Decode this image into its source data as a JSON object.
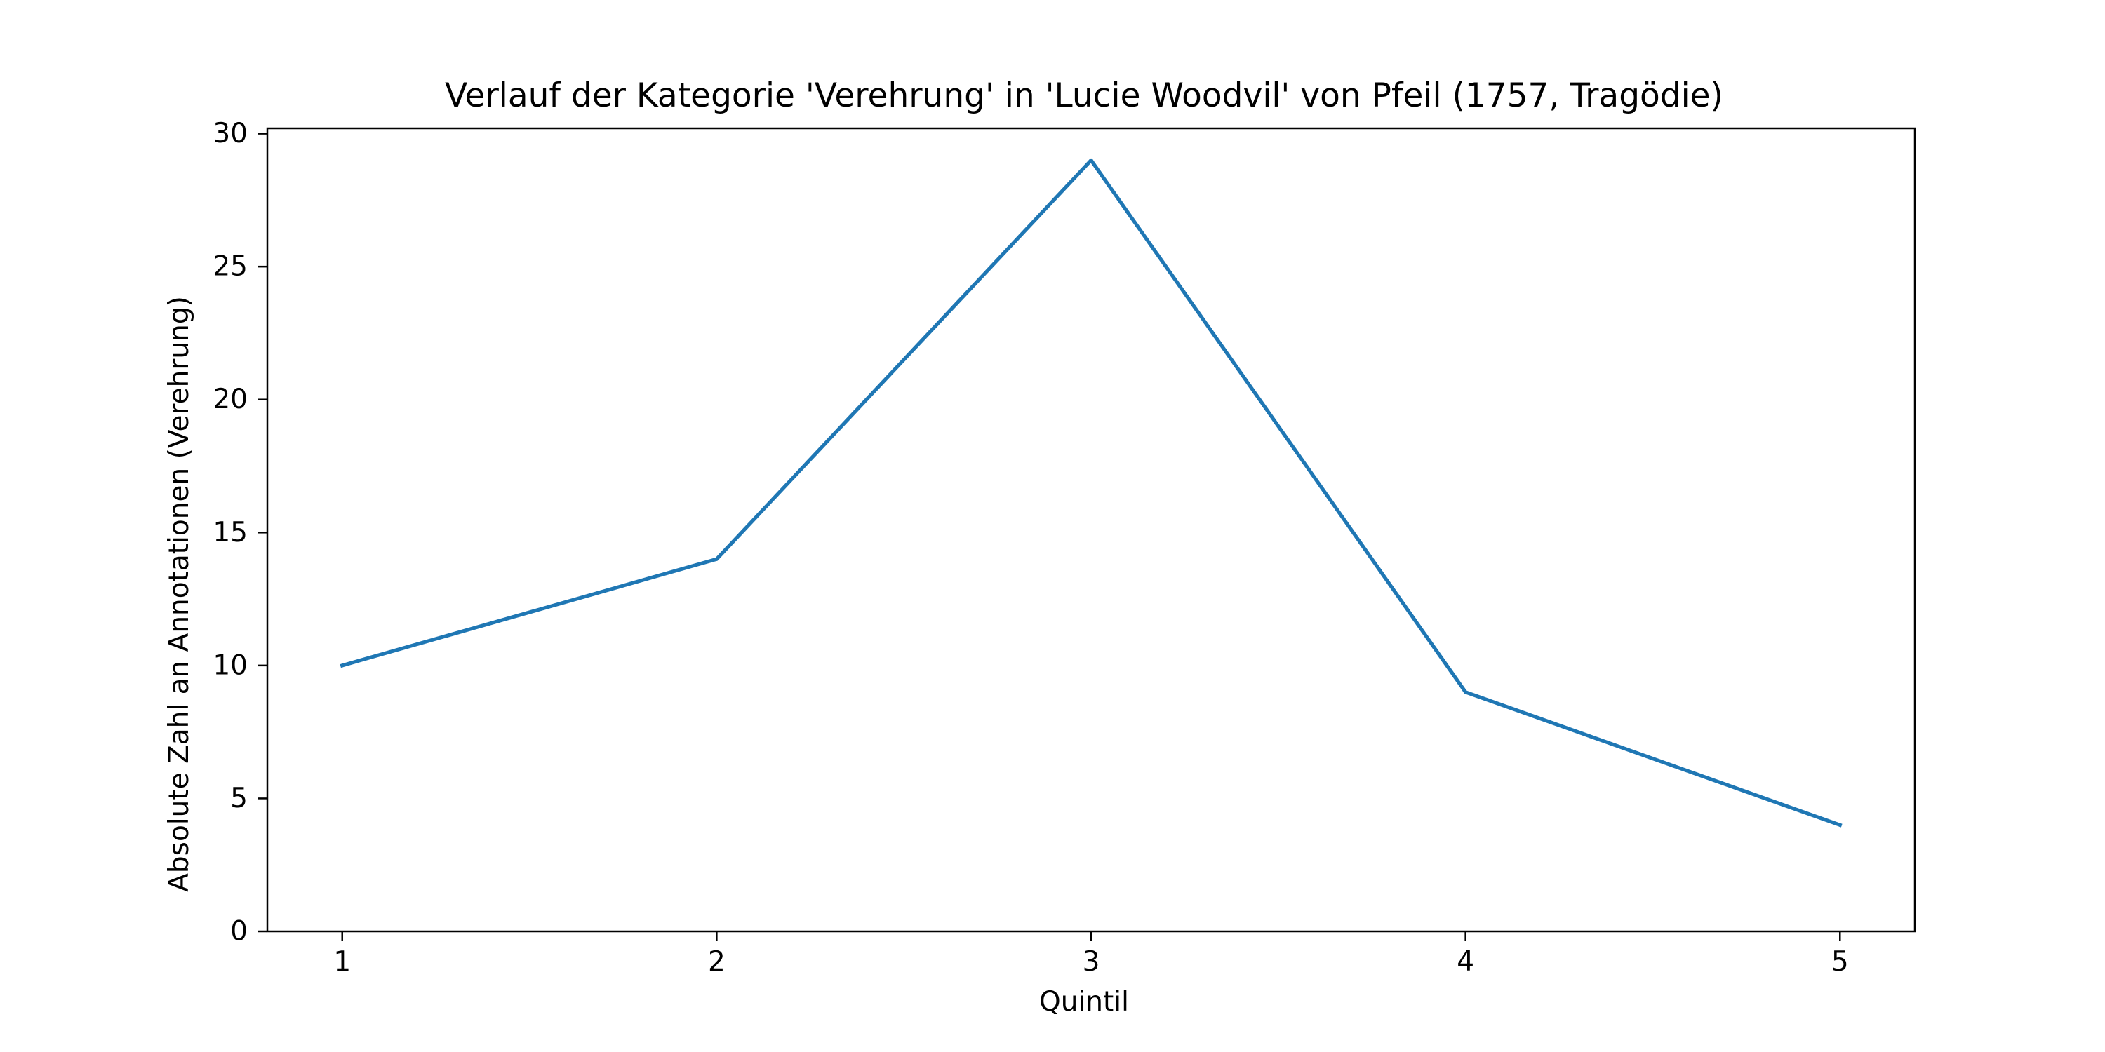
{
  "chart_data": {
    "type": "line",
    "title": "Verlauf der Kategorie 'Verehrung' in 'Lucie Woodvil' von Pfeil (1757, Tragödie)",
    "xlabel": "Quintil",
    "ylabel": "Absolute Zahl an Annotationen (Verehrung)",
    "x": [
      1,
      2,
      3,
      4,
      5
    ],
    "x_tick_labels": [
      "1",
      "2",
      "3",
      "4",
      "5"
    ],
    "y_ticks": [
      0,
      5,
      10,
      15,
      20,
      25,
      30
    ],
    "y_tick_labels": [
      "0",
      "5",
      "10",
      "15",
      "20",
      "25",
      "30"
    ],
    "xlim": [
      0.8,
      5.2
    ],
    "ylim": [
      0,
      30.2
    ],
    "grid": false,
    "series": [
      {
        "values": [
          10,
          14,
          29,
          9,
          4
        ],
        "color": "#1f77b4"
      }
    ]
  }
}
